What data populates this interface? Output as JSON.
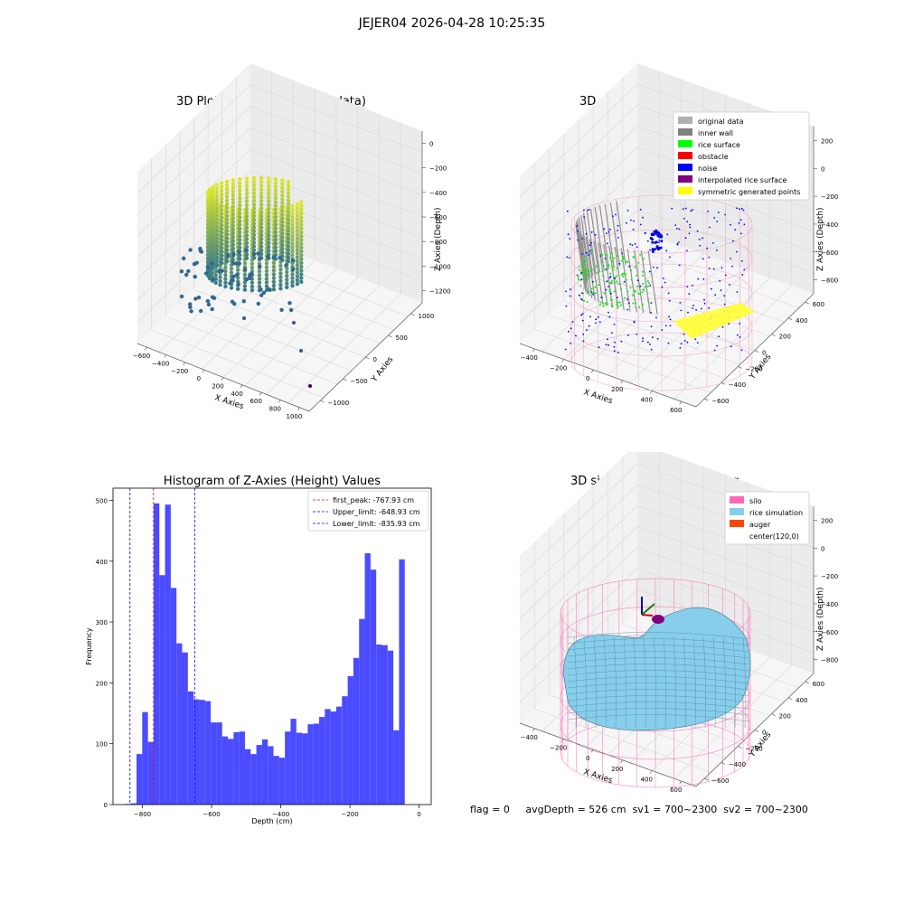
{
  "figure": {
    "suptitle": "JEJER04 2026-04-28 10:25:35"
  },
  "panel1": {
    "title": "3D Plot of Silo Interior(row data)",
    "xlabel": "X Axies",
    "ylabel": "Y Axies",
    "zlabel": "Z Axies (Depth)",
    "x_ticks": [
      "−600",
      "−400",
      "−200",
      "0",
      "200",
      "400",
      "600",
      "800",
      "1000"
    ],
    "y_ticks": [
      "−1000",
      "−500",
      "0",
      "500",
      "1000"
    ],
    "z_ticks": [
      "0",
      "−200",
      "−400",
      "−600",
      "−800",
      "−1000",
      "−1200"
    ]
  },
  "panel2": {
    "title": "3D classify of Silo Interior",
    "xlabel": "X Axies",
    "ylabel": "Y Axies",
    "zlabel": "Z Axies (Depth)",
    "x_ticks": [
      "−400",
      "−200",
      "0",
      "200",
      "400",
      "600"
    ],
    "y_ticks": [
      "−600",
      "−400",
      "−200",
      "0",
      "200",
      "400",
      "600"
    ],
    "z_ticks": [
      "200",
      "0",
      "−200",
      "−400",
      "−600",
      "−800"
    ],
    "legend": [
      {
        "label": "original data",
        "color": "#b0b0b0"
      },
      {
        "label": "inner wall",
        "color": "#808080"
      },
      {
        "label": "rice surface",
        "color": "#00ff00"
      },
      {
        "label": "obstacle",
        "color": "#ff0000"
      },
      {
        "label": "noise",
        "color": "#0000ff"
      },
      {
        "label": "interpolated rice surface",
        "color": "#800080"
      },
      {
        "label": "symmetric generated points",
        "color": "#ffff00"
      }
    ]
  },
  "panel4": {
    "title": "3D simulation of Silo Interior",
    "xlabel": "X Axies",
    "ylabel": "Y Axies",
    "zlabel": "Z Axies (Depth)",
    "x_ticks": [
      "−400",
      "−200",
      "0",
      "200",
      "400",
      "600"
    ],
    "y_ticks": [
      "−600",
      "−400",
      "−200",
      "0",
      "200",
      "400",
      "600"
    ],
    "z_ticks": [
      "200",
      "0",
      "−200",
      "−400",
      "−600",
      "−800"
    ],
    "legend": [
      {
        "label": "silo",
        "color": "#ff69b4"
      },
      {
        "label": "rice simulation",
        "color": "#87ceeb"
      },
      {
        "label": "auger",
        "color": "#ff4500"
      },
      {
        "label": "center(120,0)",
        "color": "#ffffff"
      }
    ],
    "status": {
      "flag": "flag = 0",
      "avg_depth": "avgDepth = 526 cm",
      "sv1": "sv1 = 700~2300",
      "sv2": "sv2 = 700~2300"
    }
  },
  "chart_data": [
    {
      "type": "histogram",
      "title": "Histogram of Z-Axies (Height) Values",
      "xlabel": "Depth (cm)",
      "ylabel": "Frequency",
      "xlim": [
        -885,
        35
      ],
      "ylim": [
        0,
        520
      ],
      "x_ticks": [
        -800,
        -600,
        -400,
        -200,
        0
      ],
      "y_ticks": [
        0,
        100,
        200,
        300,
        400,
        500
      ],
      "bar_color": "#4b4bff",
      "bin_start": -850,
      "bin_width": 16.5,
      "values": [
        1,
        2,
        83,
        152,
        103,
        495,
        377,
        493,
        356,
        265,
        250,
        186,
        173,
        172,
        170,
        135,
        135,
        112,
        108,
        119,
        120,
        91,
        83,
        98,
        107,
        96,
        80,
        77,
        120,
        141,
        118,
        117,
        132,
        133,
        144,
        157,
        153,
        161,
        178,
        211,
        241,
        305,
        413,
        386,
        263,
        262,
        253,
        122,
        403
      ],
      "lines": [
        {
          "label": "first_peak: -767.93 cm",
          "x": -767.93,
          "color": "#ff0000"
        },
        {
          "label": "Upper_limit: -648.93 cm",
          "x": -648.93,
          "color": "#0000ff"
        },
        {
          "label": "Lower_limit: -835.93 cm",
          "x": -835.93,
          "color": "#0000ff"
        }
      ],
      "legend_loc": "upper right"
    }
  ]
}
